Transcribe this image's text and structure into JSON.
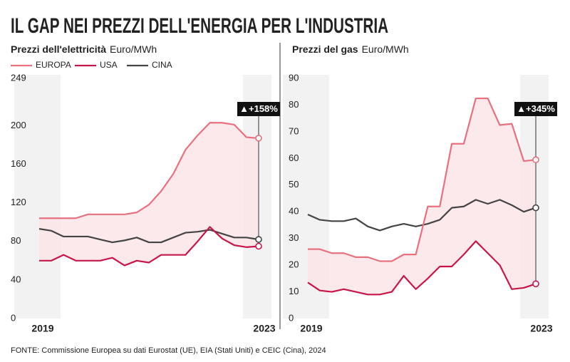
{
  "title": "IL GAP NEI PREZZI DELL'ENERGIA PER L'INDUSTRIA",
  "source": "FONTE: Commissione Europea su dati Eurostat (UE), EIA (Stati Uniti) e CEIC (Cina), 2024",
  "chart_data": [
    {
      "type": "line",
      "title": "Prezzi dell'elettricità",
      "unit": "Euro/MWh",
      "categories": [
        "2019",
        null,
        null,
        null,
        null,
        null,
        null,
        null,
        null,
        null,
        null,
        null,
        null,
        null,
        null,
        null,
        null,
        null,
        "2023"
      ],
      "ylim": [
        0,
        249
      ],
      "yticks": [
        0,
        40,
        80,
        120,
        160,
        200,
        249
      ],
      "annotation": "▲+158%",
      "series": [
        {
          "name": "EUROPA",
          "color": "#e8707f",
          "values": [
            104,
            104,
            104,
            104,
            108,
            108,
            108,
            108,
            110,
            118,
            132,
            150,
            175,
            190,
            203,
            203,
            201,
            188,
            187
          ]
        },
        {
          "name": "USA",
          "color": "#c8164a",
          "values": [
            60,
            60,
            66,
            60,
            60,
            60,
            63,
            55,
            60,
            58,
            66,
            66,
            66,
            80,
            95,
            83,
            76,
            74,
            75
          ]
        },
        {
          "name": "CINA",
          "color": "#444444",
          "values": [
            93,
            91,
            85,
            85,
            85,
            82,
            79,
            81,
            84,
            79,
            79,
            84,
            89,
            90,
            92,
            88,
            84,
            84,
            82
          ]
        }
      ]
    },
    {
      "type": "line",
      "title": "Prezzi del gas",
      "unit": "Euro/MWh",
      "categories": [
        "2019",
        null,
        null,
        null,
        null,
        null,
        null,
        null,
        null,
        null,
        null,
        null,
        null,
        null,
        null,
        null,
        null,
        null,
        null,
        "2023"
      ],
      "ylim": [
        0,
        90
      ],
      "yticks": [
        0,
        10,
        20,
        30,
        40,
        50,
        60,
        70,
        80,
        90
      ],
      "annotation": "▲+345%",
      "series": [
        {
          "color": "#e8707f",
          "values": [
            26,
            26,
            24.5,
            24.5,
            23,
            23,
            21.5,
            21.5,
            24,
            24,
            42,
            42,
            65.5,
            65.5,
            82.5,
            82.5,
            72.5,
            73,
            59,
            59.5
          ]
        },
        {
          "color": "#c8164a",
          "values": [
            13.5,
            10.5,
            10,
            11,
            10,
            9,
            9,
            10,
            16,
            11,
            15,
            19.5,
            19.5,
            24,
            29,
            24.5,
            20,
            11,
            11.5,
            13
          ]
        },
        {
          "color": "#444444",
          "values": [
            39,
            37,
            36.5,
            36.5,
            37.5,
            34.5,
            33,
            34.5,
            35.5,
            34.5,
            35.5,
            37,
            41.5,
            42,
            44.5,
            43,
            44.5,
            42.5,
            40,
            41.5
          ]
        }
      ]
    }
  ]
}
